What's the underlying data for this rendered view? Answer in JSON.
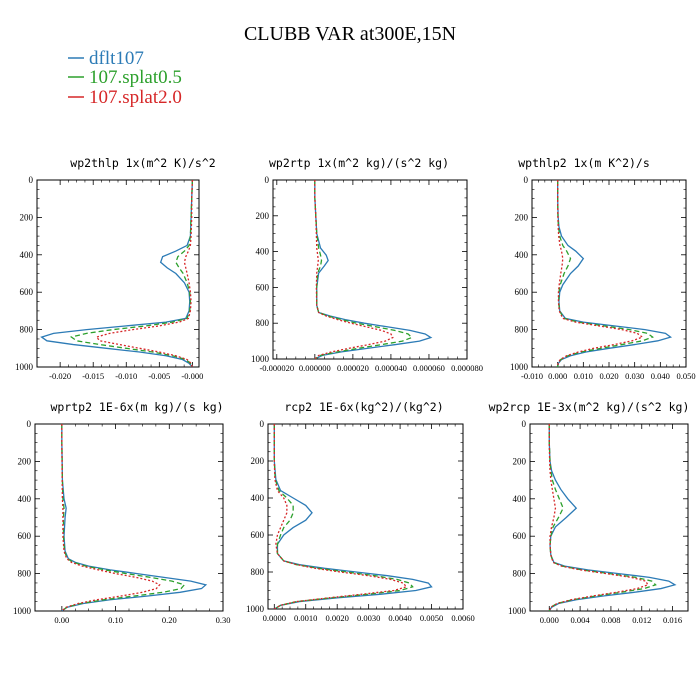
{
  "figure": {
    "title": "CLUBB VAR at300E,15N",
    "legend": [
      {
        "label": "dflt107",
        "color": "#2c7bb6"
      },
      {
        "label": "107.splat0.5",
        "color": "#2ca02c"
      },
      {
        "label": "107.splat2.0",
        "color": "#d62728"
      }
    ]
  },
  "chart_data": [
    {
      "type": "line",
      "title": "wp2thlp 1x(m^2 K)/s^2",
      "xlabel": "",
      "ylabel": "",
      "xlim": [
        -0.0235,
        0.001
      ],
      "ylim": [
        1000,
        0
      ],
      "xticks": [
        -0.02,
        -0.015,
        -0.01,
        -0.005,
        -0.0
      ],
      "xtick_labels": [
        "-0.020",
        "-0.015",
        "-0.010",
        "-0.005",
        "-0.000"
      ],
      "yticks": [
        0,
        200,
        400,
        600,
        800,
        1000
      ],
      "y": [
        0,
        100,
        200,
        300,
        350,
        380,
        410,
        440,
        470,
        500,
        550,
        600,
        650,
        700,
        740,
        760,
        780,
        800,
        820,
        840,
        860,
        880,
        900,
        920,
        940,
        960,
        980,
        1000
      ],
      "series": [
        {
          "name": "dflt107",
          "color": "#2c7bb6",
          "dash": "",
          "values": [
            0,
            -0.0001,
            -0.0002,
            -0.0003,
            -0.0008,
            -0.0025,
            -0.0045,
            -0.0048,
            -0.0038,
            -0.0025,
            -0.0012,
            -0.0005,
            -0.0004,
            -0.0005,
            -0.001,
            -0.004,
            -0.01,
            -0.016,
            -0.021,
            -0.0228,
            -0.022,
            -0.018,
            -0.013,
            -0.008,
            -0.004,
            -0.0015,
            -0.0005,
            0
          ]
        },
        {
          "name": "107.splat0.5",
          "color": "#2ca02c",
          "dash": "5,3",
          "values": [
            0,
            -0.0001,
            -0.0002,
            -0.0003,
            -0.0005,
            -0.0012,
            -0.0022,
            -0.0025,
            -0.002,
            -0.0014,
            -0.0008,
            -0.0004,
            -0.0003,
            -0.0004,
            -0.0008,
            -0.003,
            -0.007,
            -0.012,
            -0.016,
            -0.0183,
            -0.0175,
            -0.014,
            -0.01,
            -0.006,
            -0.003,
            -0.001,
            -0.0003,
            0
          ]
        },
        {
          "name": "107.splat2.0",
          "color": "#d62728",
          "dash": "2,2",
          "values": [
            0,
            -0.0001,
            -0.0001,
            -0.0002,
            -0.0003,
            -0.0006,
            -0.001,
            -0.0012,
            -0.001,
            -0.0008,
            -0.0005,
            -0.0003,
            -0.0002,
            -0.0003,
            -0.0006,
            -0.002,
            -0.005,
            -0.009,
            -0.0125,
            -0.0145,
            -0.014,
            -0.011,
            -0.008,
            -0.005,
            -0.0025,
            -0.0008,
            -0.0002,
            0
          ]
        }
      ]
    },
    {
      "type": "line",
      "title": "wp2rtp 1x(m^2 kg)/(s^2 kg)",
      "xlabel": "",
      "ylabel": "",
      "xlim": [
        -2.2e-05,
        8e-05
      ],
      "ylim": [
        1000,
        0
      ],
      "xticks": [
        -2e-05,
        0.0,
        2e-05,
        4e-05,
        6e-05,
        8e-05
      ],
      "xtick_labels": [
        "-0.000020",
        "0.000000",
        "0.000020",
        "0.000040",
        "0.000060",
        "0.000080"
      ],
      "yticks": [
        0,
        200,
        400,
        600,
        800,
        1000
      ],
      "y": [
        0,
        100,
        200,
        300,
        380,
        420,
        450,
        480,
        520,
        600,
        700,
        740,
        760,
        780,
        800,
        820,
        840,
        860,
        880,
        900,
        920,
        940,
        960,
        980,
        1000
      ],
      "series": [
        {
          "name": "dflt107",
          "color": "#2c7bb6",
          "dash": "",
          "values": [
            0,
            0,
            5e-07,
            1e-06,
            3e-06,
            6e-06,
            7e-06,
            5e-06,
            2e-06,
            1e-06,
            1e-06,
            2e-06,
            8e-06,
            1.6e-05,
            2.6e-05,
            3.8e-05,
            5e-05,
            5.8e-05,
            6.1e-05,
            5.5e-05,
            4.2e-05,
            2.8e-05,
            1.4e-05,
            4e-06,
            0
          ]
        },
        {
          "name": "107.splat0.5",
          "color": "#2ca02c",
          "dash": "5,3",
          "values": [
            0,
            0,
            5e-07,
            1e-06,
            2e-06,
            3e-06,
            3.5e-06,
            3e-06,
            1.5e-06,
            1e-06,
            1e-06,
            2e-06,
            7e-06,
            1.4e-05,
            2.2e-05,
            3.2e-05,
            4.2e-05,
            4.9e-05,
            5.1e-05,
            4.6e-05,
            3.5e-05,
            2.3e-05,
            1.2e-05,
            3e-06,
            0
          ]
        },
        {
          "name": "107.splat2.0",
          "color": "#d62728",
          "dash": "2,2",
          "values": [
            0,
            0,
            5e-07,
            8e-07,
            1e-06,
            1.5e-06,
            1.8e-06,
            1.5e-06,
            1e-06,
            8e-07,
            1e-06,
            2e-06,
            6e-06,
            1.2e-05,
            1.9e-05,
            2.7e-05,
            3.5e-05,
            4e-05,
            4.1e-05,
            3.7e-05,
            2.8e-05,
            1.8e-05,
            9e-06,
            2e-06,
            0
          ]
        }
      ]
    },
    {
      "type": "line",
      "title": "wpthlp2 1x(m K^2)/s",
      "xlabel": "",
      "ylabel": "",
      "xlim": [
        -0.01,
        0.05
      ],
      "ylim": [
        1000,
        0
      ],
      "xticks": [
        -0.01,
        0.0,
        0.01,
        0.02,
        0.03,
        0.04,
        0.05
      ],
      "xtick_labels": [
        "-0.010",
        "0.000",
        "0.010",
        "0.020",
        "0.030",
        "0.040",
        "0.050"
      ],
      "yticks": [
        0,
        200,
        400,
        600,
        800,
        1000
      ],
      "y": [
        0,
        100,
        200,
        250,
        300,
        350,
        380,
        420,
        460,
        500,
        560,
        600,
        650,
        700,
        740,
        760,
        780,
        800,
        820,
        840,
        860,
        880,
        900,
        920,
        940,
        960,
        980,
        1000
      ],
      "series": [
        {
          "name": "dflt107",
          "color": "#2c7bb6",
          "dash": "",
          "values": [
            0,
            0,
            0.0002,
            0.0005,
            0.0015,
            0.004,
            0.007,
            0.01,
            0.008,
            0.005,
            0.002,
            0.0008,
            0.0005,
            0.0008,
            0.003,
            0.01,
            0.022,
            0.034,
            0.042,
            0.044,
            0.039,
            0.03,
            0.02,
            0.011,
            0.005,
            0.0015,
            0.0003,
            0
          ]
        },
        {
          "name": "107.splat0.5",
          "color": "#2ca02c",
          "dash": "5,3",
          "values": [
            0,
            0,
            0.0001,
            0.0003,
            0.0008,
            0.002,
            0.0035,
            0.005,
            0.004,
            0.0025,
            0.001,
            0.0005,
            0.0004,
            0.0007,
            0.0025,
            0.008,
            0.018,
            0.028,
            0.035,
            0.037,
            0.033,
            0.025,
            0.017,
            0.009,
            0.004,
            0.0012,
            0.0002,
            0
          ]
        },
        {
          "name": "107.splat2.0",
          "color": "#d62728",
          "dash": "2,2",
          "values": [
            0,
            0,
            0.0001,
            0.0002,
            0.0004,
            0.0009,
            0.0015,
            0.002,
            0.0017,
            0.0012,
            0.0006,
            0.0003,
            0.0003,
            0.0006,
            0.002,
            0.007,
            0.016,
            0.025,
            0.031,
            0.033,
            0.029,
            0.022,
            0.014,
            0.008,
            0.0035,
            0.001,
            0.0002,
            0
          ]
        }
      ]
    },
    {
      "type": "line",
      "title": "wprtp2 1E-6x(m kg)/(s kg)",
      "xlabel": "",
      "ylabel": "",
      "xlim": [
        -0.05,
        0.3
      ],
      "ylim": [
        1000,
        0
      ],
      "xticks": [
        0.0,
        0.1,
        0.2,
        0.3
      ],
      "xtick_labels": [
        "0.00",
        "0.10",
        "0.20",
        "0.30"
      ],
      "yticks": [
        0,
        200,
        400,
        600,
        800,
        1000
      ],
      "y": [
        0,
        100,
        200,
        300,
        400,
        450,
        500,
        600,
        680,
        720,
        740,
        760,
        780,
        800,
        820,
        840,
        860,
        880,
        900,
        920,
        940,
        960,
        980,
        1000
      ],
      "series": [
        {
          "name": "dflt107",
          "color": "#2c7bb6",
          "dash": "",
          "values": [
            0,
            0,
            0.0005,
            0.001,
            0.004,
            0.008,
            0.006,
            0.004,
            0.006,
            0.012,
            0.025,
            0.05,
            0.09,
            0.14,
            0.19,
            0.24,
            0.268,
            0.26,
            0.22,
            0.16,
            0.09,
            0.04,
            0.01,
            0
          ]
        },
        {
          "name": "107.splat0.5",
          "color": "#2ca02c",
          "dash": "5,3",
          "values": [
            0,
            0,
            0.0005,
            0.001,
            0.002,
            0.004,
            0.003,
            0.003,
            0.005,
            0.01,
            0.022,
            0.045,
            0.08,
            0.12,
            0.165,
            0.205,
            0.228,
            0.222,
            0.188,
            0.135,
            0.078,
            0.035,
            0.009,
            0
          ]
        },
        {
          "name": "107.splat2.0",
          "color": "#d62728",
          "dash": "2,2",
          "values": [
            0,
            0,
            0.0003,
            0.0006,
            0.001,
            0.002,
            0.002,
            0.002,
            0.004,
            0.009,
            0.018,
            0.038,
            0.068,
            0.1,
            0.138,
            0.168,
            0.182,
            0.176,
            0.15,
            0.11,
            0.065,
            0.03,
            0.008,
            0
          ]
        }
      ]
    },
    {
      "type": "line",
      "title": "rcp2 1E-6x(kg^2)/(kg^2)",
      "xlabel": "",
      "ylabel": "",
      "xlim": [
        -0.0002,
        0.006
      ],
      "ylim": [
        1000,
        0
      ],
      "xticks": [
        0.0,
        0.001,
        0.002,
        0.003,
        0.004,
        0.005,
        0.006
      ],
      "xtick_labels": [
        "0.0000",
        "0.0010",
        "0.0020",
        "0.0030",
        "0.0040",
        "0.0050",
        "0.0060"
      ],
      "yticks": [
        0,
        200,
        400,
        600,
        800,
        1000
      ],
      "y": [
        0,
        200,
        300,
        360,
        400,
        440,
        480,
        520,
        560,
        600,
        650,
        700,
        740,
        760,
        780,
        800,
        820,
        840,
        860,
        880,
        900,
        920,
        940,
        960,
        980,
        1000
      ],
      "series": [
        {
          "name": "dflt107",
          "color": "#2c7bb6",
          "dash": "",
          "values": [
            0,
            0,
            5e-05,
            0.0002,
            0.0006,
            0.001,
            0.0012,
            0.001,
            0.0006,
            0.0003,
            0.0001,
            0.0001,
            0.0003,
            0.0008,
            0.0016,
            0.0026,
            0.0036,
            0.0044,
            0.0049,
            0.005,
            0.0045,
            0.0034,
            0.002,
            0.0008,
            0.0002,
            0
          ]
        },
        {
          "name": "107.splat0.5",
          "color": "#2ca02c",
          "dash": "5,3",
          "values": [
            0,
            0,
            3e-05,
            0.00015,
            0.0004,
            0.0006,
            0.0006,
            0.0005,
            0.0003,
            0.0002,
            0.0001,
            0.0001,
            0.0003,
            0.0007,
            0.0014,
            0.0023,
            0.0032,
            0.0039,
            0.0043,
            0.0044,
            0.004,
            0.003,
            0.0018,
            0.0007,
            0.0002,
            0
          ]
        },
        {
          "name": "107.splat2.0",
          "color": "#d62728",
          "dash": "2,2",
          "values": [
            0,
            0,
            2e-05,
            0.0001,
            0.0003,
            0.0004,
            0.0004,
            0.0003,
            0.0002,
            0.0001,
            5e-05,
            0.0001,
            0.0003,
            0.0007,
            0.0013,
            0.0021,
            0.003,
            0.0037,
            0.0041,
            0.0042,
            0.0038,
            0.0028,
            0.0017,
            0.0007,
            0.0002,
            0
          ]
        }
      ]
    },
    {
      "type": "line",
      "title": "wp2rcp 1E-3x(m^2 kg)/(s^2 kg)",
      "xlabel": "",
      "ylabel": "",
      "xlim": [
        -0.0025,
        0.018
      ],
      "ylim": [
        1000,
        0
      ],
      "xticks": [
        0.0,
        0.004,
        0.008,
        0.012,
        0.016
      ],
      "xtick_labels": [
        "0.000",
        "0.004",
        "0.008",
        "0.012",
        "0.016"
      ],
      "yticks": [
        0,
        200,
        400,
        600,
        800,
        1000
      ],
      "y": [
        0,
        100,
        200,
        250,
        300,
        350,
        400,
        450,
        500,
        550,
        600,
        650,
        700,
        740,
        760,
        780,
        800,
        820,
        840,
        860,
        880,
        900,
        920,
        940,
        960,
        980,
        1000
      ],
      "series": [
        {
          "name": "dflt107",
          "color": "#2c7bb6",
          "dash": "",
          "values": [
            0,
            0,
            0.0001,
            0.0003,
            0.0008,
            0.0015,
            0.0024,
            0.0035,
            0.0022,
            0.0008,
            0.0002,
            0.0001,
            0.0002,
            0.0006,
            0.002,
            0.005,
            0.009,
            0.013,
            0.0155,
            0.0163,
            0.0145,
            0.011,
            0.007,
            0.0035,
            0.0012,
            0.0003,
            0
          ]
        },
        {
          "name": "107.splat0.5",
          "color": "#2ca02c",
          "dash": "5,3",
          "values": [
            0,
            0,
            0.0001,
            0.0002,
            0.0004,
            0.0008,
            0.0013,
            0.0018,
            0.0012,
            0.0005,
            0.0002,
            0.0001,
            0.0002,
            0.0005,
            0.0017,
            0.0042,
            0.0078,
            0.0112,
            0.0133,
            0.0138,
            0.0123,
            0.0093,
            0.006,
            0.003,
            0.001,
            0.0002,
            0
          ]
        },
        {
          "name": "107.splat2.0",
          "color": "#d62728",
          "dash": "2,2",
          "values": [
            0,
            0,
            5e-05,
            0.0001,
            0.0002,
            0.0004,
            0.0006,
            0.0008,
            0.0006,
            0.0003,
            0.0001,
            0.0001,
            0.0002,
            0.0005,
            0.0016,
            0.004,
            0.0074,
            0.0106,
            0.0125,
            0.0128,
            0.0114,
            0.0087,
            0.0056,
            0.0028,
            0.001,
            0.0002,
            0
          ]
        }
      ]
    }
  ]
}
